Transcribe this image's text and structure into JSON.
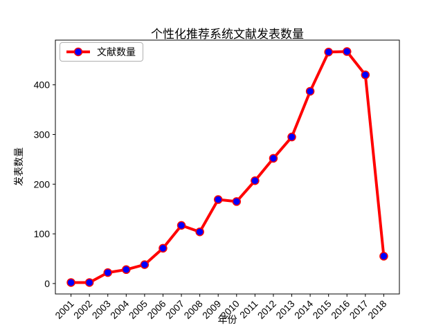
{
  "chart_data": {
    "type": "line",
    "title": "个性化推荐系统文献发表数量",
    "xlabel": "年份",
    "ylabel": "发表数量",
    "legend_position": "upper left",
    "grid": false,
    "xtick_rotation": 45,
    "categories": [
      "2001",
      "2002",
      "2003",
      "2004",
      "2005",
      "2006",
      "2007",
      "2008",
      "2009",
      "2010",
      "2011",
      "2012",
      "2013",
      "2014",
      "2015",
      "2016",
      "2017",
      "2018"
    ],
    "series": [
      {
        "name": "文献数量",
        "values": [
          2,
          2,
          22,
          28,
          38,
          71,
          117,
          104,
          169,
          165,
          207,
          252,
          295,
          387,
          466,
          467,
          420,
          55
        ]
      }
    ],
    "yticks": [
      0,
      100,
      200,
      300,
      400
    ],
    "ylim": [
      -21,
      490
    ],
    "line_color": "#ff0000",
    "marker_color": "#0000ff",
    "marker_edge_color": "#ff0000",
    "axis_color": "#000000",
    "legend_border_color": "#b0b0b0"
  }
}
